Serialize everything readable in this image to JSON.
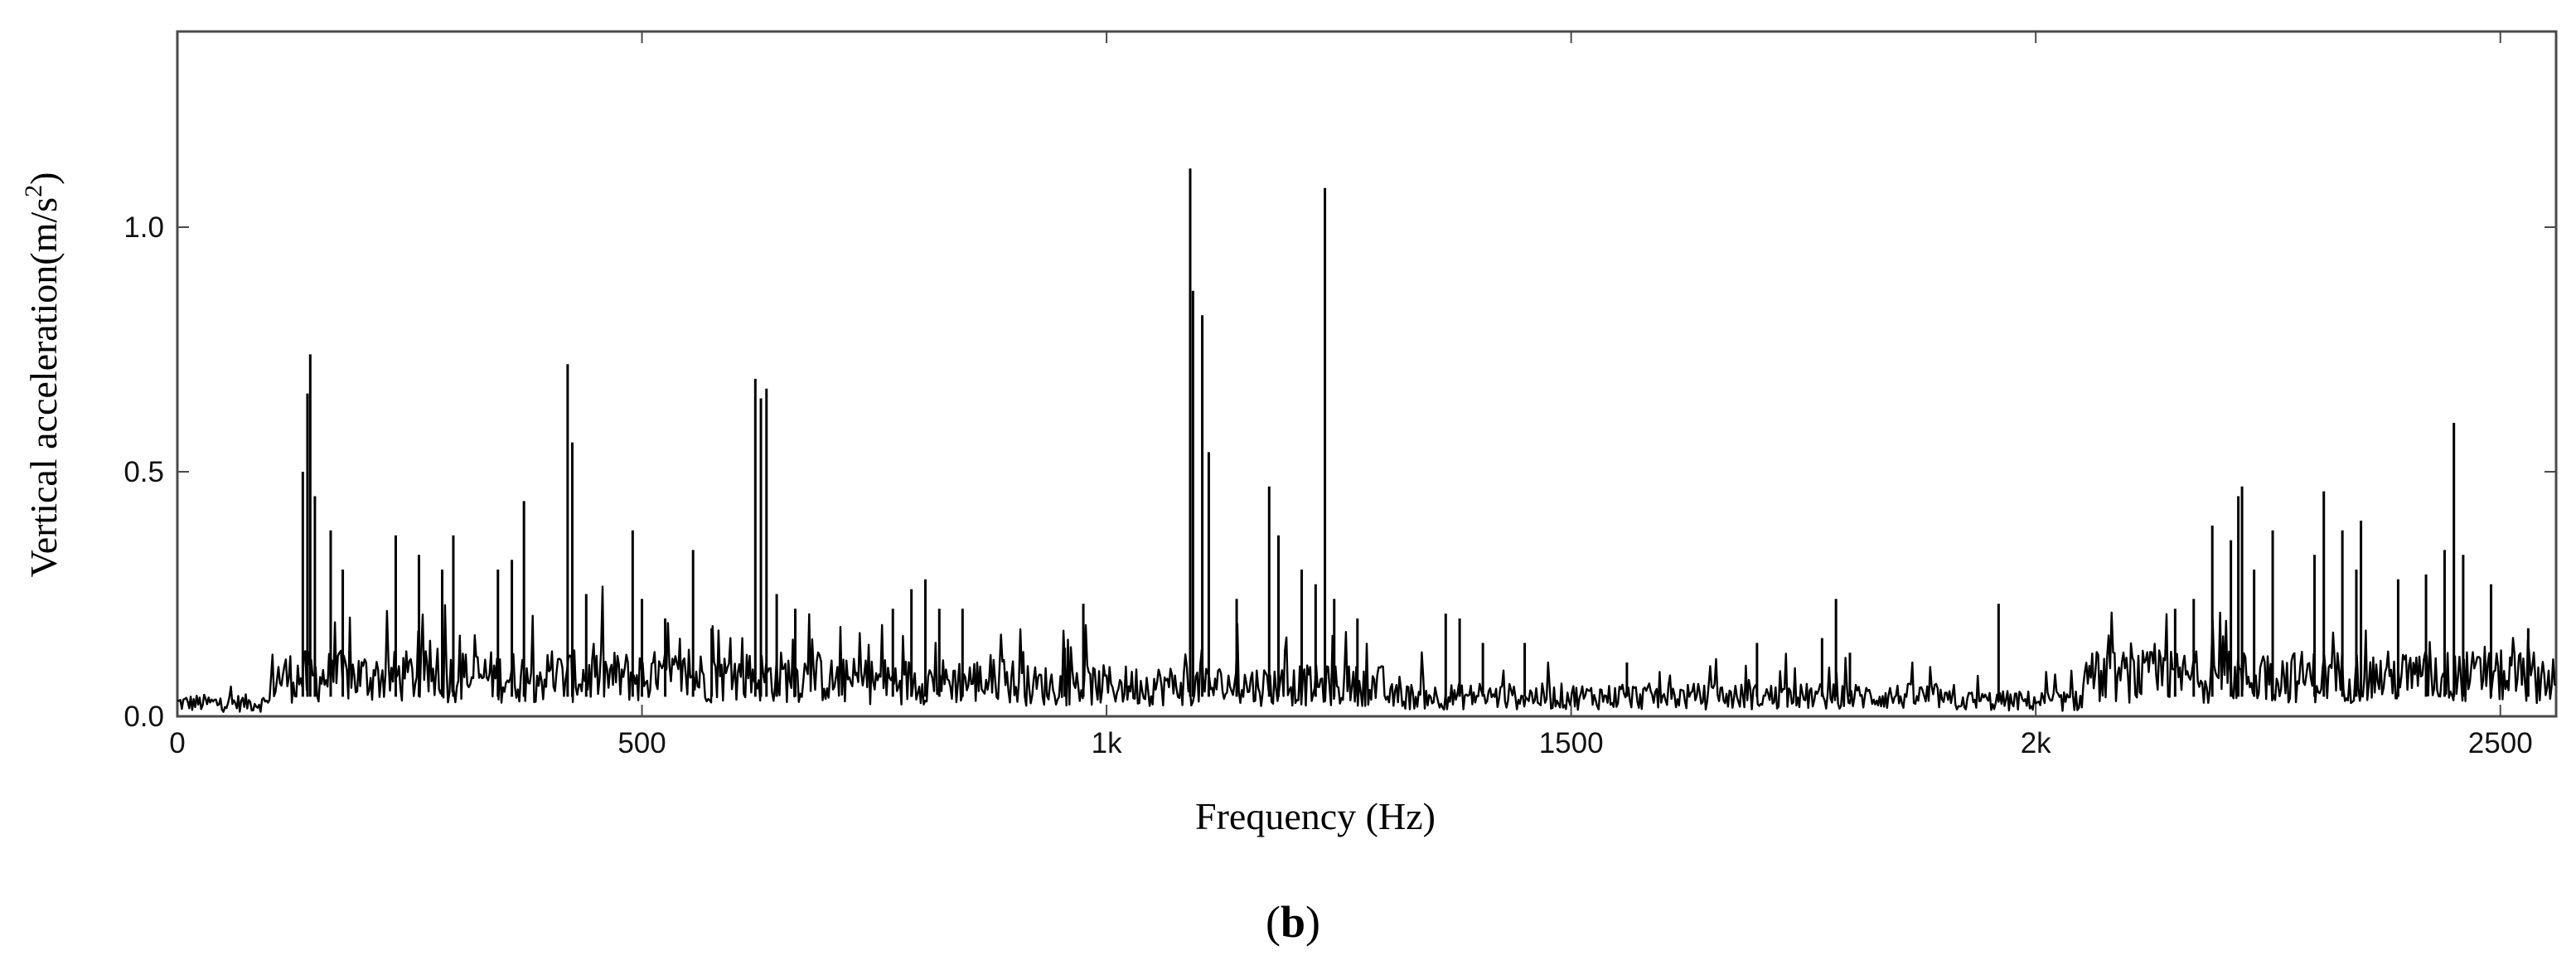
{
  "chart_data": {
    "type": "line",
    "title": "",
    "xlabel": "Frequency (Hz)",
    "ylabel_main": "Vertical acceleration(m/s",
    "ylabel_sup": "2",
    "ylabel_close": ")",
    "xlim": [
      0,
      2560
    ],
    "ylim": [
      0,
      1.4
    ],
    "grid": false,
    "legend": "none",
    "x_ticks": [
      {
        "value": 0,
        "label": "0"
      },
      {
        "value": 500,
        "label": "500"
      },
      {
        "value": 1000,
        "label": "1k"
      },
      {
        "value": 1500,
        "label": "1500"
      },
      {
        "value": 2000,
        "label": "2k"
      },
      {
        "value": 2500,
        "label": "2500"
      }
    ],
    "y_ticks": [
      {
        "value": 0.0,
        "label": "0.0"
      },
      {
        "value": 0.5,
        "label": "0.5"
      },
      {
        "value": 1.0,
        "label": "1.0"
      }
    ],
    "baseline_level": 0.05,
    "line_color": "#000000",
    "peaks": [
      {
        "x": 135,
        "y": 0.5
      },
      {
        "x": 140,
        "y": 0.66
      },
      {
        "x": 143,
        "y": 0.74
      },
      {
        "x": 148,
        "y": 0.45
      },
      {
        "x": 165,
        "y": 0.38
      },
      {
        "x": 178,
        "y": 0.3
      },
      {
        "x": 235,
        "y": 0.37
      },
      {
        "x": 260,
        "y": 0.33
      },
      {
        "x": 285,
        "y": 0.3
      },
      {
        "x": 297,
        "y": 0.37
      },
      {
        "x": 345,
        "y": 0.3
      },
      {
        "x": 360,
        "y": 0.32
      },
      {
        "x": 373,
        "y": 0.44
      },
      {
        "x": 420,
        "y": 0.72
      },
      {
        "x": 425,
        "y": 0.56
      },
      {
        "x": 440,
        "y": 0.25
      },
      {
        "x": 490,
        "y": 0.38
      },
      {
        "x": 500,
        "y": 0.24
      },
      {
        "x": 525,
        "y": 0.2
      },
      {
        "x": 555,
        "y": 0.34
      },
      {
        "x": 575,
        "y": 0.18
      },
      {
        "x": 622,
        "y": 0.69
      },
      {
        "x": 628,
        "y": 0.65
      },
      {
        "x": 634,
        "y": 0.67
      },
      {
        "x": 645,
        "y": 0.25
      },
      {
        "x": 665,
        "y": 0.22
      },
      {
        "x": 770,
        "y": 0.22
      },
      {
        "x": 790,
        "y": 0.26
      },
      {
        "x": 805,
        "y": 0.28
      },
      {
        "x": 820,
        "y": 0.22
      },
      {
        "x": 845,
        "y": 0.22
      },
      {
        "x": 955,
        "y": 0.14
      },
      {
        "x": 975,
        "y": 0.23
      },
      {
        "x": 1090,
        "y": 1.12
      },
      {
        "x": 1093,
        "y": 0.87
      },
      {
        "x": 1103,
        "y": 0.82
      },
      {
        "x": 1110,
        "y": 0.54
      },
      {
        "x": 1140,
        "y": 0.24
      },
      {
        "x": 1175,
        "y": 0.47
      },
      {
        "x": 1185,
        "y": 0.37
      },
      {
        "x": 1210,
        "y": 0.3
      },
      {
        "x": 1225,
        "y": 0.27
      },
      {
        "x": 1235,
        "y": 1.08
      },
      {
        "x": 1245,
        "y": 0.24
      },
      {
        "x": 1270,
        "y": 0.2
      },
      {
        "x": 1365,
        "y": 0.21
      },
      {
        "x": 1380,
        "y": 0.2
      },
      {
        "x": 1405,
        "y": 0.15
      },
      {
        "x": 1450,
        "y": 0.15
      },
      {
        "x": 1560,
        "y": 0.11
      },
      {
        "x": 1700,
        "y": 0.15
      },
      {
        "x": 1770,
        "y": 0.16
      },
      {
        "x": 1785,
        "y": 0.24
      },
      {
        "x": 1800,
        "y": 0.13
      },
      {
        "x": 1960,
        "y": 0.23
      },
      {
        "x": 2150,
        "y": 0.22
      },
      {
        "x": 2170,
        "y": 0.24
      },
      {
        "x": 2190,
        "y": 0.39
      },
      {
        "x": 2210,
        "y": 0.36
      },
      {
        "x": 2218,
        "y": 0.45
      },
      {
        "x": 2222,
        "y": 0.47
      },
      {
        "x": 2235,
        "y": 0.3
      },
      {
        "x": 2255,
        "y": 0.38
      },
      {
        "x": 2300,
        "y": 0.33
      },
      {
        "x": 2310,
        "y": 0.46
      },
      {
        "x": 2330,
        "y": 0.38
      },
      {
        "x": 2345,
        "y": 0.3
      },
      {
        "x": 2350,
        "y": 0.4
      },
      {
        "x": 2390,
        "y": 0.28
      },
      {
        "x": 2420,
        "y": 0.29
      },
      {
        "x": 2440,
        "y": 0.34
      },
      {
        "x": 2450,
        "y": 0.6
      },
      {
        "x": 2460,
        "y": 0.33
      },
      {
        "x": 2490,
        "y": 0.27
      },
      {
        "x": 2530,
        "y": 0.18
      }
    ]
  },
  "panel_label": {
    "open": "(",
    "letter": "b",
    "close": ")"
  }
}
